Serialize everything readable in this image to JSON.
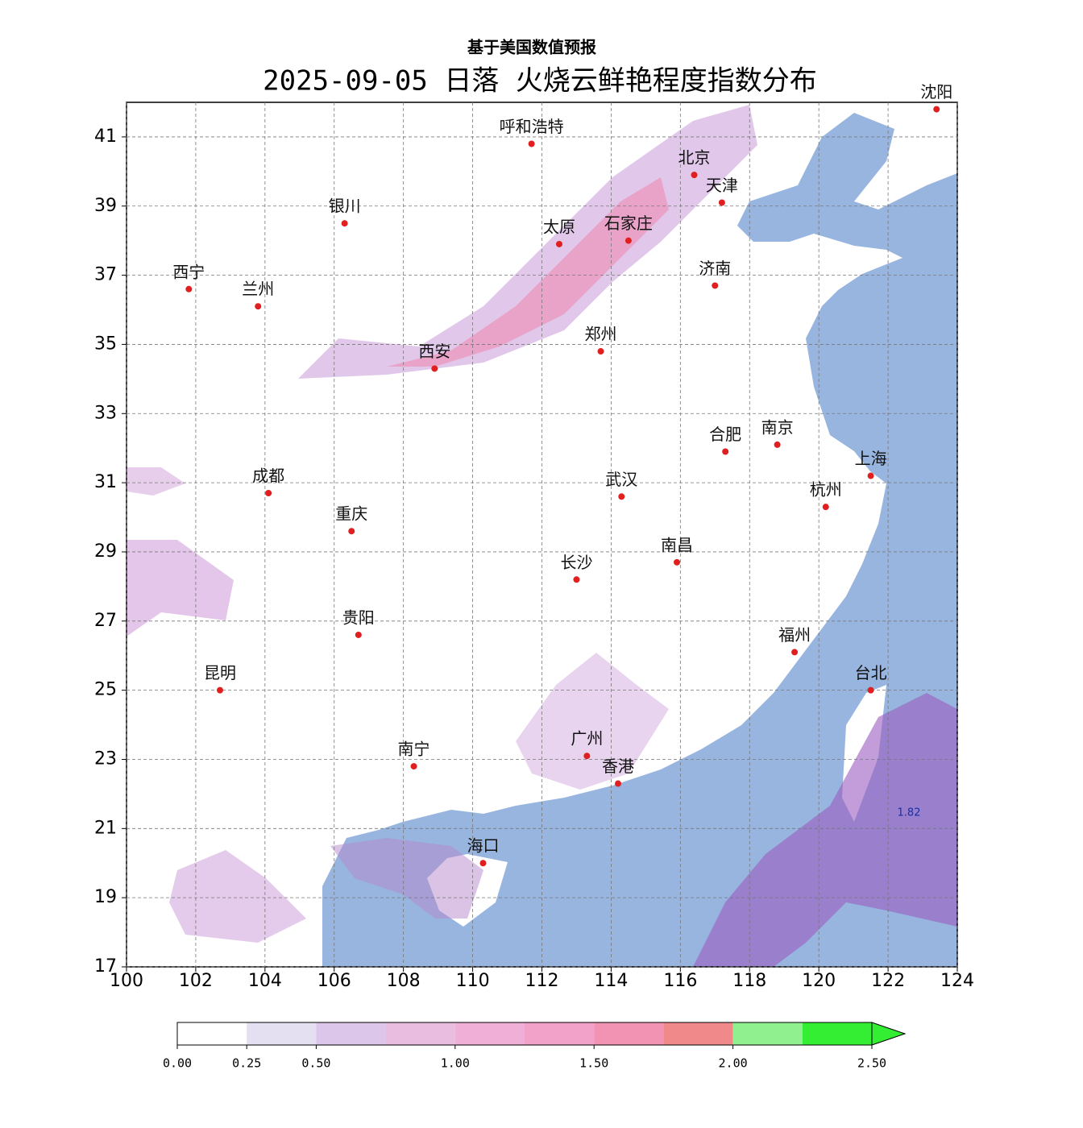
{
  "header": {
    "subtitle": "基于美国数值预报",
    "title": "2025-09-05 日落 火烧云鲜艳程度指数分布"
  },
  "map": {
    "xlim": [
      100,
      124
    ],
    "ylim": [
      17,
      42
    ],
    "xticks": [
      100,
      102,
      104,
      106,
      108,
      110,
      112,
      114,
      116,
      118,
      120,
      122,
      124
    ],
    "yticks": [
      17,
      19,
      21,
      23,
      25,
      27,
      29,
      31,
      33,
      35,
      37,
      39,
      41
    ],
    "cities": [
      "沈阳",
      "呼和浩特",
      "北京",
      "天津",
      "银川",
      "太原",
      "石家庄",
      "西宁",
      "兰州",
      "济南",
      "西安",
      "郑州",
      "合肥",
      "南京",
      "上海",
      "成都",
      "武汉",
      "杭州",
      "重庆",
      "长沙",
      "南昌",
      "贵阳",
      "福州",
      "昆明",
      "台北",
      "广州",
      "南宁",
      "香港",
      "海口"
    ],
    "max_value": 1.82
  },
  "colorbar": {
    "levels": [
      0,
      0.25,
      0.5,
      0.75,
      1,
      1.25,
      1.5,
      1.75,
      2,
      2.25,
      2.5
    ],
    "colors": [
      "#ffffff",
      "#e4e0f2",
      "#dcc6ea",
      "#e8bde0",
      "#f0afd6",
      "#f2a2c8",
      "#f293b3",
      "#f08a8a",
      "#90f090",
      "#33ee33"
    ],
    "ticks": [
      {
        "value": 0,
        "label": "0.00"
      },
      {
        "value": 0.25,
        "label": "0.25"
      },
      {
        "value": 0.5,
        "label": "0.50"
      },
      {
        "value": 1,
        "label": "1.00"
      },
      {
        "value": 1.5,
        "label": "1.50"
      },
      {
        "value": 2,
        "label": "2.00"
      },
      {
        "value": 2.5,
        "label": "2.50"
      }
    ]
  }
}
